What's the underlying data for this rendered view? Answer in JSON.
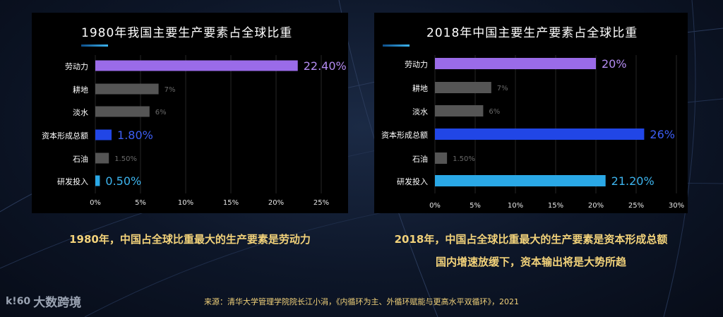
{
  "chart_data": [
    {
      "type": "bar",
      "orientation": "horizontal",
      "title": "1980年我国主要生产要素占全球比重",
      "categories": [
        "劳动力",
        "耕地",
        "淡水",
        "资本形成总额",
        "石油",
        "研发投入"
      ],
      "values": [
        22.4,
        7,
        6,
        1.8,
        1.5,
        0.5
      ],
      "value_labels": [
        "22.40%",
        "7%",
        "6%",
        "1.80%",
        "1.50%",
        "0.50%"
      ],
      "colors": [
        "#9a6be8",
        "#555555",
        "#555555",
        "#2146e6",
        "#555555",
        "#2aa8e6"
      ],
      "label_colors": [
        "#b48cf2",
        "#6a6a6a",
        "#6a6a6a",
        "#3d5ef5",
        "#6a6a6a",
        "#3db4ee"
      ],
      "xticks": [
        "0%",
        "5%",
        "10%",
        "15%",
        "20%",
        "25%"
      ],
      "xlim": [
        0,
        25
      ],
      "grid": true
    },
    {
      "type": "bar",
      "orientation": "horizontal",
      "title": "2018年中国主要生产要素占全球比重",
      "categories": [
        "劳动力",
        "耕地",
        "淡水",
        "资本形成总额",
        "石油",
        "研发投入"
      ],
      "values": [
        20,
        7,
        6,
        26,
        1.5,
        21.2
      ],
      "value_labels": [
        "20%",
        "7%",
        "6%",
        "26%",
        "1.50%",
        "21.20%"
      ],
      "colors": [
        "#9a6be8",
        "#555555",
        "#555555",
        "#2146e6",
        "#555555",
        "#2aa8e6"
      ],
      "label_colors": [
        "#b48cf2",
        "#6a6a6a",
        "#6a6a6a",
        "#3d5ef5",
        "#6a6a6a",
        "#3db4ee"
      ],
      "xticks": [
        "0%",
        "5%",
        "10%",
        "15%",
        "20%",
        "25%",
        "30%"
      ],
      "xlim": [
        0,
        30
      ],
      "grid": true
    }
  ],
  "captions": {
    "c1980": "1980年，中国占全球比重最大的生产要素是劳动力",
    "c2018": "2018年，中国占全球比重最大的生产要素是资本形成总额",
    "c2018_sub": "国内增速放缓下，资本输出将是大势所趋"
  },
  "source": "来源：清华大学管理学院院长江小涓，《内循环为主、外循环赋能与更高水平双循环》，2021",
  "logo": {
    "mark": "k!60",
    "text": "大数跨境"
  }
}
